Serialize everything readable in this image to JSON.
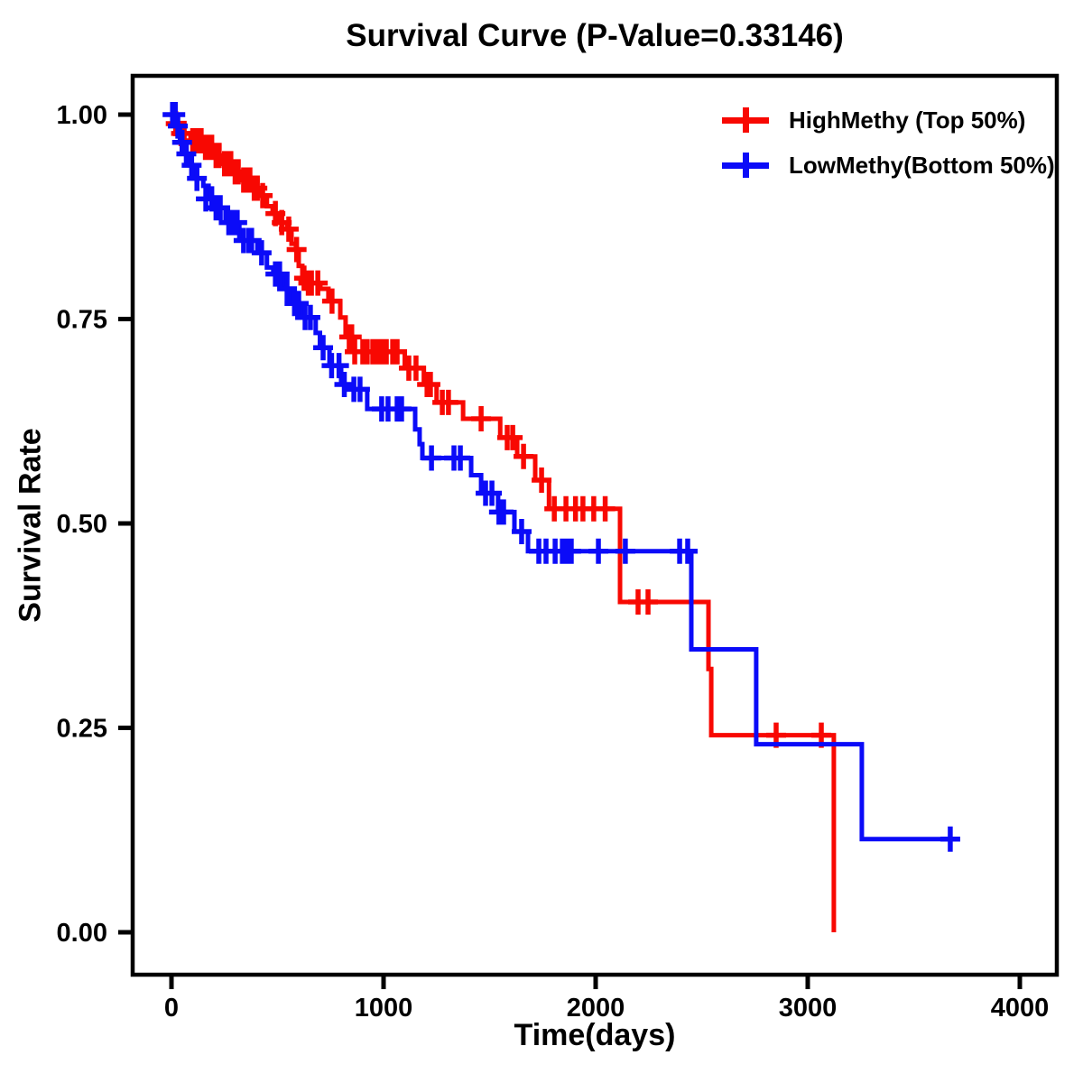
{
  "title": "Survival Curve (P-Value=0.33146)",
  "colors": {
    "high": "#F80802",
    "low": "#0B0BF8",
    "axis": "#000000",
    "background": "#FFFFFF"
  },
  "legend": {
    "position": "top-right",
    "entries": [
      {
        "label": "HighMethy (Top 50%)",
        "series": "high"
      },
      {
        "label": "LowMethy(Bottom 50%)",
        "series": "low"
      }
    ]
  },
  "chart_data": {
    "type": "line",
    "subtype": "kaplan-meier-step-curve",
    "title": "Survival Curve (P-Value=0.33146)",
    "p_value": 0.33146,
    "xlabel": "Time(days)",
    "ylabel": "Survival Rate",
    "grid": false,
    "xticks": [
      0,
      1000,
      2000,
      3000,
      4000
    ],
    "ytick_labels": [
      "0.00",
      "0.25",
      "0.50",
      "0.75",
      "1.00"
    ],
    "ytick_values": [
      0,
      0.25,
      0.5,
      0.75,
      1.0
    ],
    "xlim": [
      -190,
      4185
    ],
    "ylim": [
      -0.055,
      1.055
    ],
    "series": [
      {
        "name": "HighMethy (Top 50%)",
        "color_key": "high",
        "steps": [
          [
            0,
            1.0
          ],
          [
            15,
            0.989
          ],
          [
            35,
            0.977
          ],
          [
            90,
            0.968
          ],
          [
            150,
            0.96
          ],
          [
            200,
            0.95
          ],
          [
            240,
            0.94
          ],
          [
            290,
            0.93
          ],
          [
            330,
            0.92
          ],
          [
            380,
            0.91
          ],
          [
            420,
            0.901
          ],
          [
            450,
            0.888
          ],
          [
            477,
            0.879
          ],
          [
            510,
            0.868
          ],
          [
            545,
            0.86
          ],
          [
            566,
            0.842
          ],
          [
            587,
            0.835
          ],
          [
            600,
            0.815
          ],
          [
            617,
            0.8
          ],
          [
            640,
            0.794
          ],
          [
            702,
            0.787
          ],
          [
            740,
            0.772
          ],
          [
            796,
            0.752
          ],
          [
            821,
            0.728
          ],
          [
            855,
            0.71
          ],
          [
            1100,
            0.69
          ],
          [
            1190,
            0.67
          ],
          [
            1250,
            0.648
          ],
          [
            1375,
            0.628
          ],
          [
            1550,
            0.605
          ],
          [
            1630,
            0.582
          ],
          [
            1715,
            0.553
          ],
          [
            1780,
            0.518
          ],
          [
            2115,
            0.404
          ],
          [
            2532,
            0.322
          ],
          [
            2545,
            0.241
          ],
          [
            3123,
            0.0
          ]
        ],
        "end_time": 3123,
        "censors": [
          [
            20,
            0.989
          ],
          [
            45,
            0.977
          ],
          [
            60,
            0.977
          ],
          [
            100,
            0.968
          ],
          [
            120,
            0.968
          ],
          [
            140,
            0.968
          ],
          [
            160,
            0.96
          ],
          [
            175,
            0.96
          ],
          [
            190,
            0.96
          ],
          [
            210,
            0.95
          ],
          [
            225,
            0.95
          ],
          [
            250,
            0.94
          ],
          [
            265,
            0.94
          ],
          [
            280,
            0.94
          ],
          [
            300,
            0.93
          ],
          [
            315,
            0.93
          ],
          [
            340,
            0.92
          ],
          [
            355,
            0.92
          ],
          [
            370,
            0.92
          ],
          [
            390,
            0.91
          ],
          [
            405,
            0.91
          ],
          [
            430,
            0.901
          ],
          [
            490,
            0.879
          ],
          [
            520,
            0.868
          ],
          [
            553,
            0.86
          ],
          [
            590,
            0.835
          ],
          [
            625,
            0.8
          ],
          [
            645,
            0.794
          ],
          [
            660,
            0.794
          ],
          [
            690,
            0.794
          ],
          [
            757,
            0.772
          ],
          [
            838,
            0.728
          ],
          [
            850,
            0.728
          ],
          [
            864,
            0.71
          ],
          [
            902,
            0.71
          ],
          [
            923,
            0.71
          ],
          [
            949,
            0.71
          ],
          [
            970,
            0.71
          ],
          [
            991,
            0.71
          ],
          [
            1013,
            0.71
          ],
          [
            1043,
            0.71
          ],
          [
            1064,
            0.71
          ],
          [
            1119,
            0.69
          ],
          [
            1153,
            0.69
          ],
          [
            1205,
            0.67
          ],
          [
            1221,
            0.67
          ],
          [
            1277,
            0.648
          ],
          [
            1306,
            0.648
          ],
          [
            1460,
            0.628
          ],
          [
            1583,
            0.605
          ],
          [
            1609,
            0.605
          ],
          [
            1660,
            0.582
          ],
          [
            1745,
            0.553
          ],
          [
            1805,
            0.518
          ],
          [
            1860,
            0.518
          ],
          [
            1905,
            0.518
          ],
          [
            1940,
            0.518
          ],
          [
            1991,
            0.518
          ],
          [
            2045,
            0.518
          ],
          [
            2200,
            0.404
          ],
          [
            2247,
            0.404
          ],
          [
            2851,
            0.241
          ],
          [
            3064,
            0.241
          ]
        ]
      },
      {
        "name": "LowMethy(Bottom 50%)",
        "color_key": "low",
        "steps": [
          [
            0,
            1.0
          ],
          [
            25,
            0.986
          ],
          [
            40,
            0.966
          ],
          [
            60,
            0.952
          ],
          [
            85,
            0.938
          ],
          [
            105,
            0.922
          ],
          [
            150,
            0.913
          ],
          [
            175,
            0.897
          ],
          [
            205,
            0.886
          ],
          [
            255,
            0.868
          ],
          [
            320,
            0.846
          ],
          [
            405,
            0.831
          ],
          [
            450,
            0.813
          ],
          [
            480,
            0.805
          ],
          [
            530,
            0.787
          ],
          [
            565,
            0.769
          ],
          [
            615,
            0.752
          ],
          [
            680,
            0.733
          ],
          [
            700,
            0.715
          ],
          [
            745,
            0.693
          ],
          [
            800,
            0.67
          ],
          [
            843,
            0.664
          ],
          [
            923,
            0.64
          ],
          [
            1149,
            0.615
          ],
          [
            1170,
            0.597
          ],
          [
            1183,
            0.58
          ],
          [
            1413,
            0.559
          ],
          [
            1460,
            0.537
          ],
          [
            1540,
            0.514
          ],
          [
            1617,
            0.49
          ],
          [
            1681,
            0.466
          ],
          [
            2451,
            0.346
          ],
          [
            2757,
            0.23
          ],
          [
            3255,
            0.114
          ]
        ],
        "end_time": 3700,
        "censors": [
          [
            5,
            1.0
          ],
          [
            18,
            1.0
          ],
          [
            30,
            0.986
          ],
          [
            50,
            0.966
          ],
          [
            70,
            0.952
          ],
          [
            95,
            0.938
          ],
          [
            120,
            0.922
          ],
          [
            162,
            0.897
          ],
          [
            190,
            0.897
          ],
          [
            210,
            0.886
          ],
          [
            230,
            0.886
          ],
          [
            270,
            0.868
          ],
          [
            290,
            0.868
          ],
          [
            310,
            0.868
          ],
          [
            340,
            0.846
          ],
          [
            365,
            0.846
          ],
          [
            378,
            0.846
          ],
          [
            425,
            0.831
          ],
          [
            490,
            0.805
          ],
          [
            510,
            0.805
          ],
          [
            545,
            0.787
          ],
          [
            580,
            0.769
          ],
          [
            600,
            0.769
          ],
          [
            630,
            0.752
          ],
          [
            655,
            0.752
          ],
          [
            715,
            0.715
          ],
          [
            755,
            0.693
          ],
          [
            790,
            0.693
          ],
          [
            815,
            0.67
          ],
          [
            860,
            0.664
          ],
          [
            889,
            0.664
          ],
          [
            991,
            0.64
          ],
          [
            1021,
            0.64
          ],
          [
            1064,
            0.64
          ],
          [
            1085,
            0.64
          ],
          [
            1226,
            0.58
          ],
          [
            1332,
            0.58
          ],
          [
            1362,
            0.58
          ],
          [
            1481,
            0.537
          ],
          [
            1511,
            0.537
          ],
          [
            1544,
            0.514
          ],
          [
            1566,
            0.514
          ],
          [
            1651,
            0.49
          ],
          [
            1732,
            0.466
          ],
          [
            1766,
            0.466
          ],
          [
            1809,
            0.466
          ],
          [
            1843,
            0.466
          ],
          [
            1864,
            0.466
          ],
          [
            1885,
            0.466
          ],
          [
            2013,
            0.466
          ],
          [
            2140,
            0.466
          ],
          [
            2396,
            0.466
          ],
          [
            2434,
            0.466
          ],
          [
            3672,
            0.114
          ]
        ]
      }
    ]
  }
}
